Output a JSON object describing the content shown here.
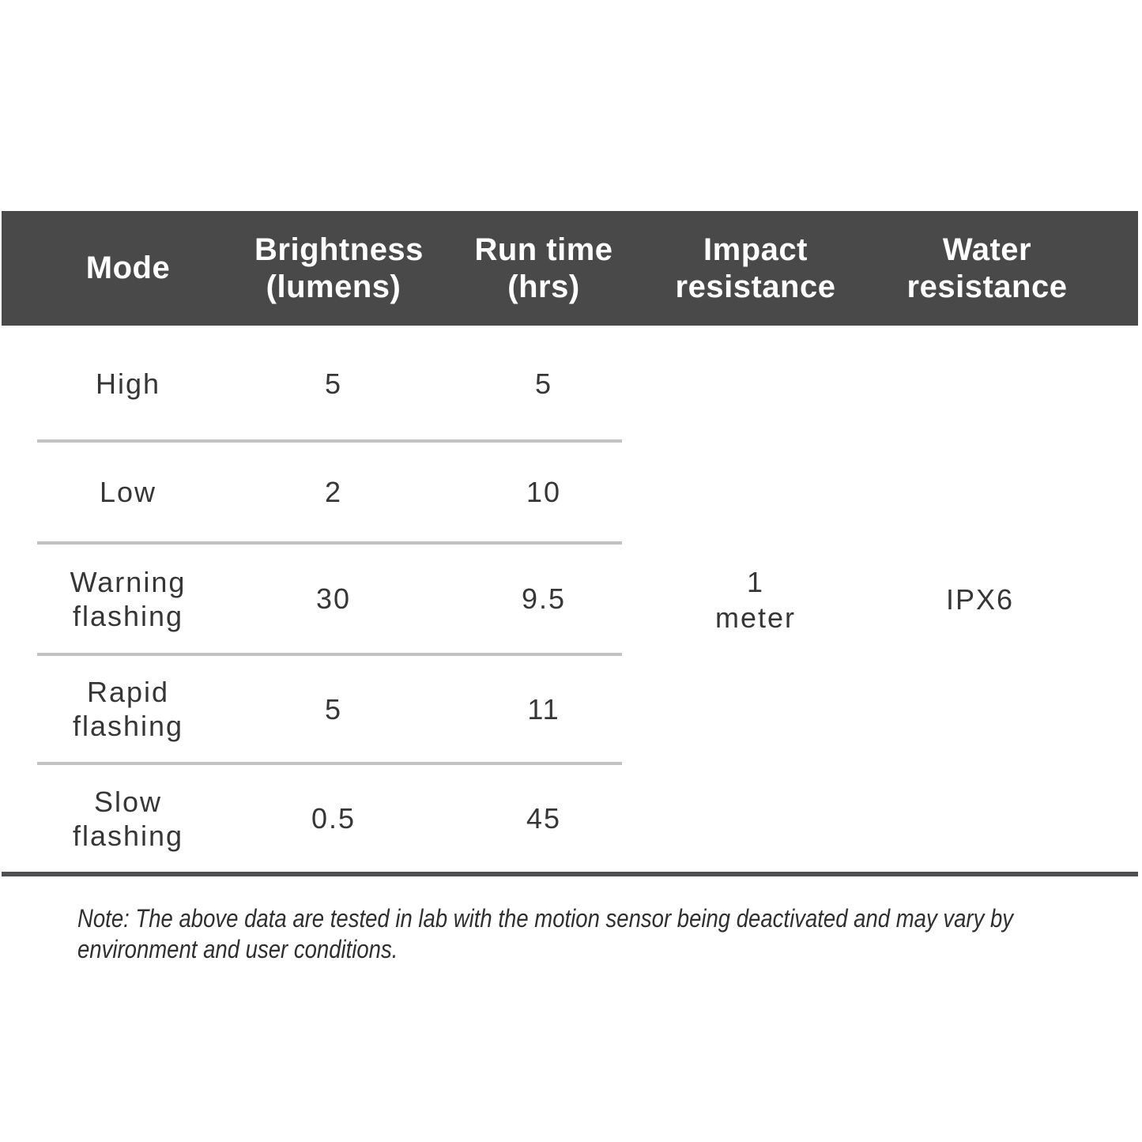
{
  "table": {
    "columns": [
      {
        "key": "mode",
        "label": "Mode"
      },
      {
        "key": "brightness",
        "label": "Brightness\n(lumens)"
      },
      {
        "key": "runtime",
        "label": "Run time\n(hrs)"
      },
      {
        "key": "impact",
        "label": "Impact\nresistance"
      },
      {
        "key": "water",
        "label": "Water\nresistance"
      }
    ],
    "rows": [
      {
        "mode": "High",
        "brightness": "5",
        "runtime": "5"
      },
      {
        "mode": "Low",
        "brightness": "2",
        "runtime": "10"
      },
      {
        "mode": "Warning\nflashing",
        "brightness": "30",
        "runtime": "9.5"
      },
      {
        "mode": "Rapid\nflashing",
        "brightness": "5",
        "runtime": "11"
      },
      {
        "mode": "Slow\nflashing",
        "brightness": "0.5",
        "runtime": "45"
      }
    ],
    "merged_cells": {
      "impact_resistance": "1\nmeter",
      "water_resistance": "IPX6"
    }
  },
  "note": "Note: The above data are tested in lab with the motion sensor being deactivated and may vary by\nenvironment and user conditions.",
  "colors": {
    "header_bg": "#494949",
    "header_text": "#ffffff",
    "body_text": "#363636",
    "divider": "#c2c2c2",
    "bottom_rule": "#4f5052",
    "page_bg": "#ffffff"
  }
}
